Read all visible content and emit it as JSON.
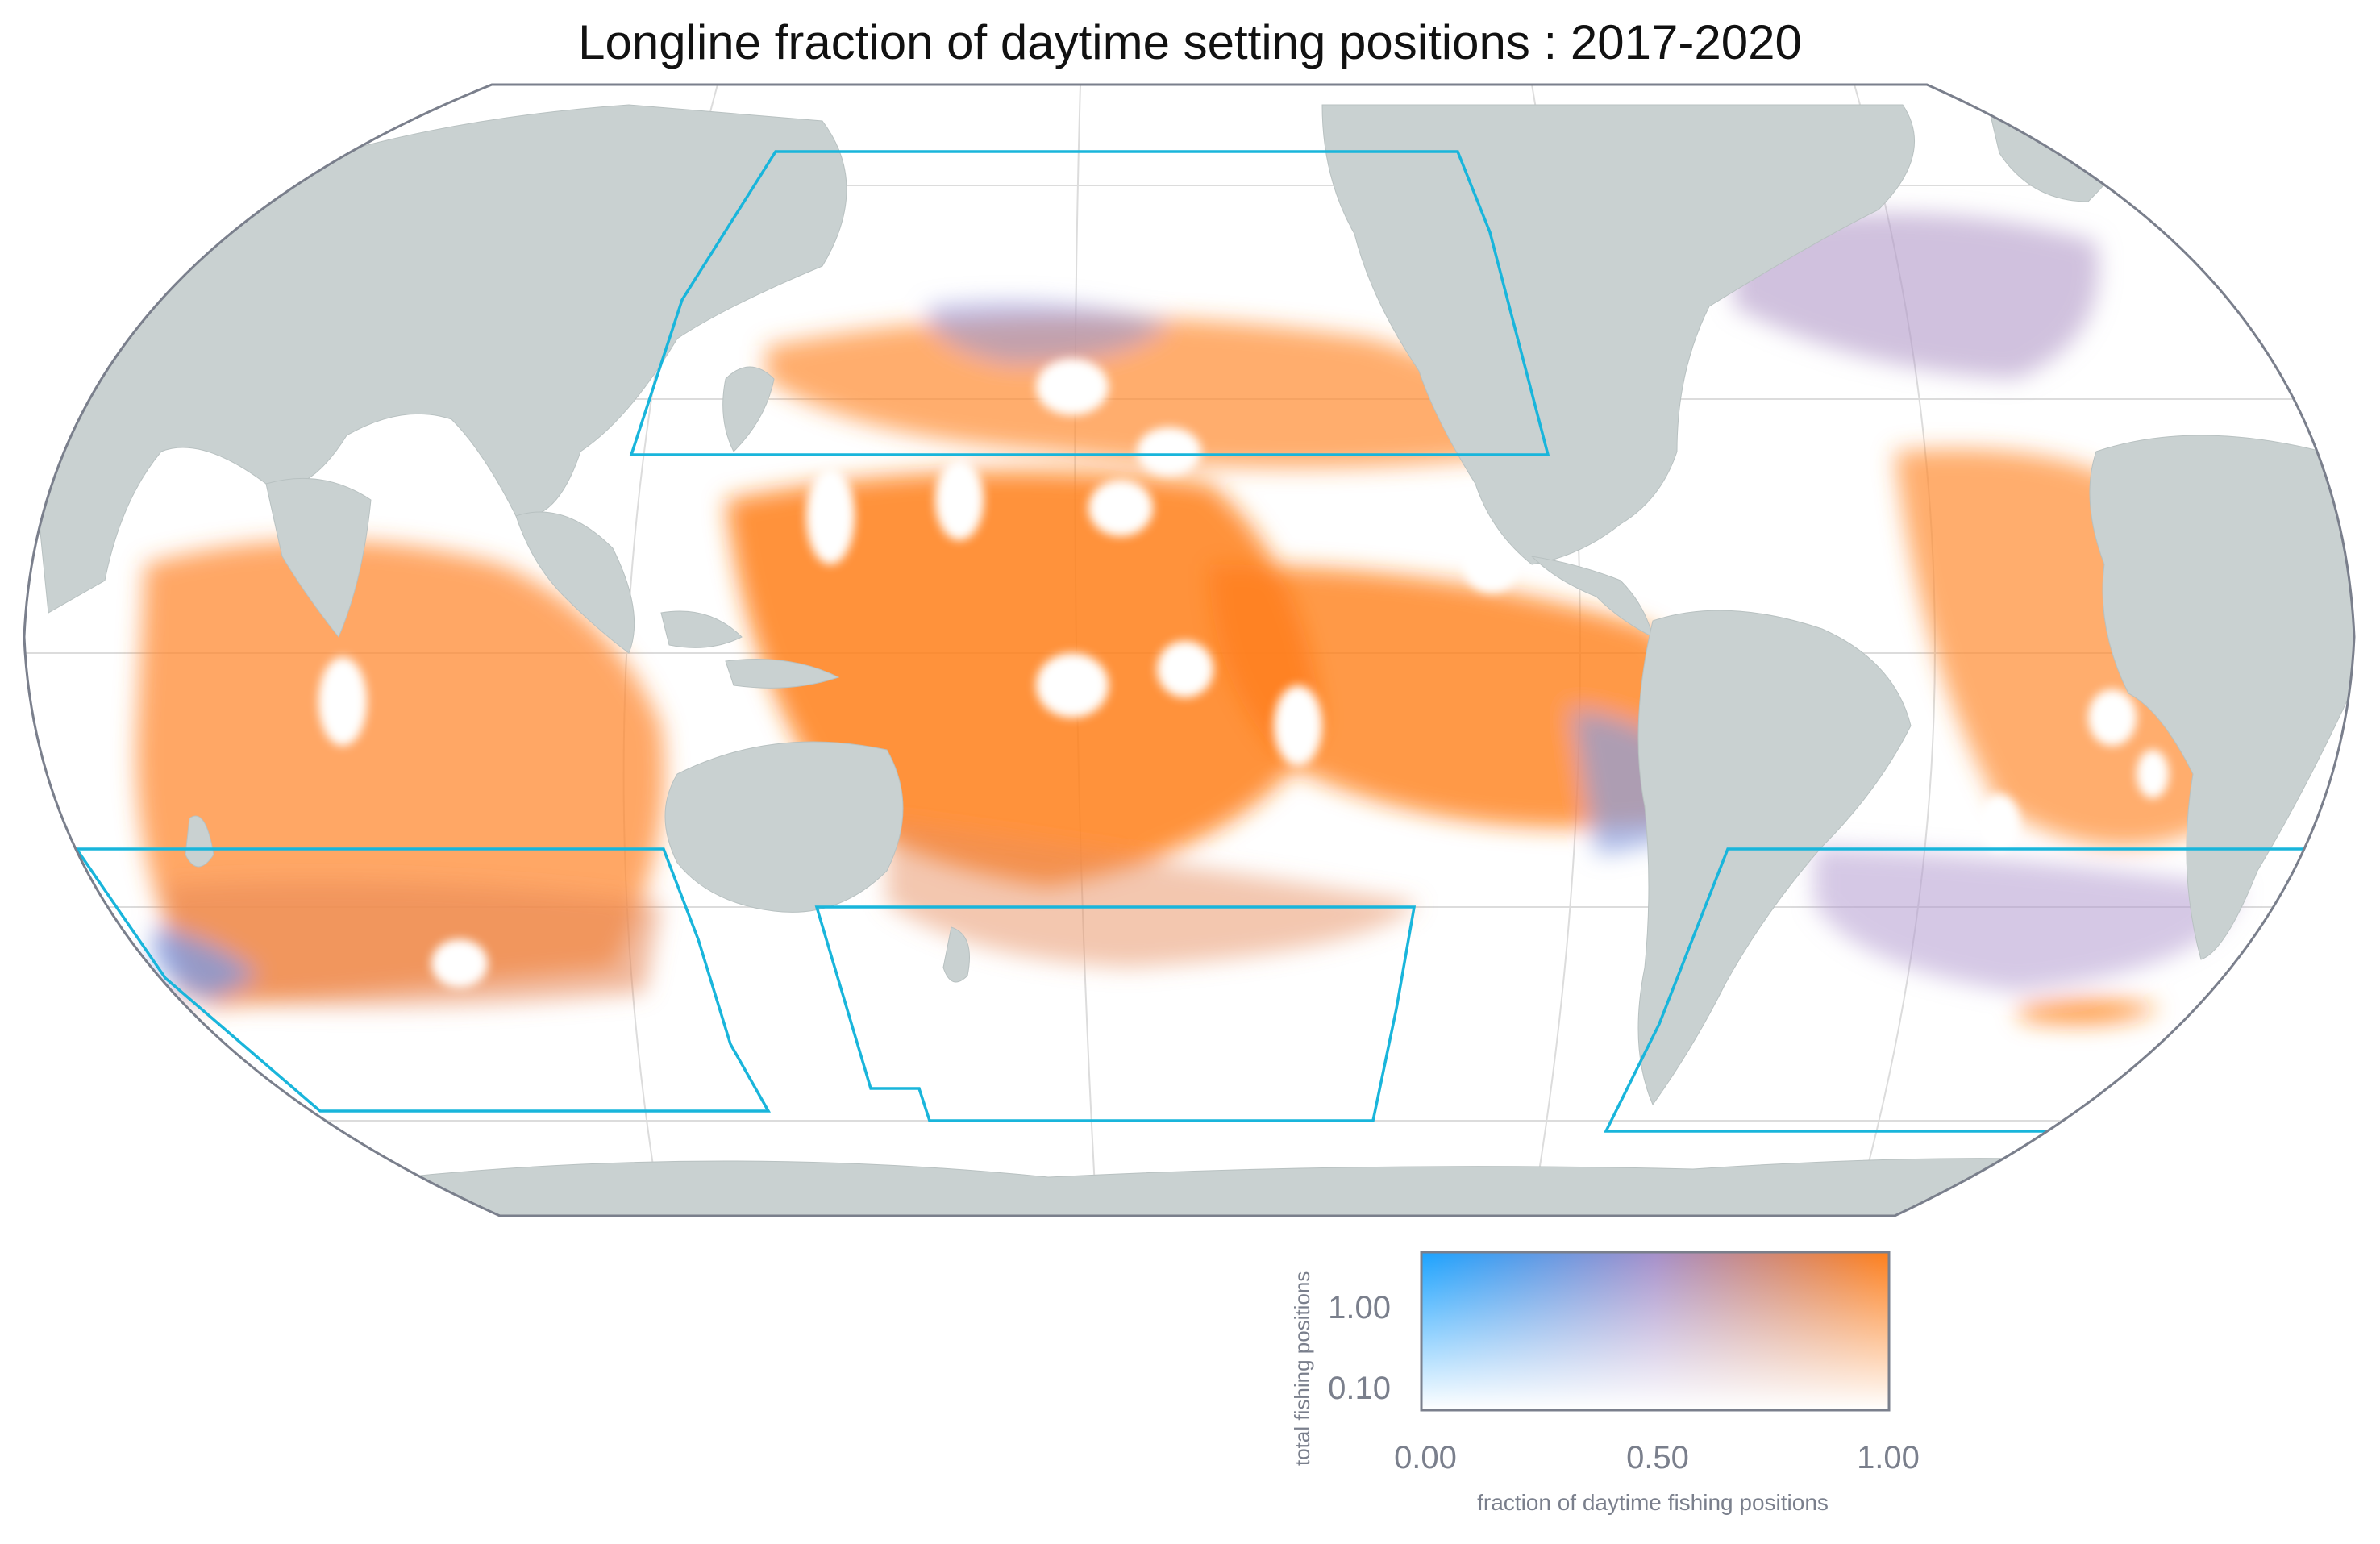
{
  "title": "Longline fraction of daytime setting positions : 2017-2020",
  "legend": {
    "x_label": "fraction of daytime fishing positions",
    "y_label": "total fishing positions",
    "x_ticks": [
      "0.00",
      "0.50",
      "1.00"
    ],
    "y_ticks": [
      "1.00",
      "0.10"
    ]
  },
  "colors": {
    "land": "#c9d1d1",
    "ocean": "#ffffff",
    "map_border": "#7a7f8c",
    "region_outline": "#19b5db",
    "day": "#ff7f1a",
    "night": "#1aa3ff",
    "mixed": "#a58fc9"
  }
}
